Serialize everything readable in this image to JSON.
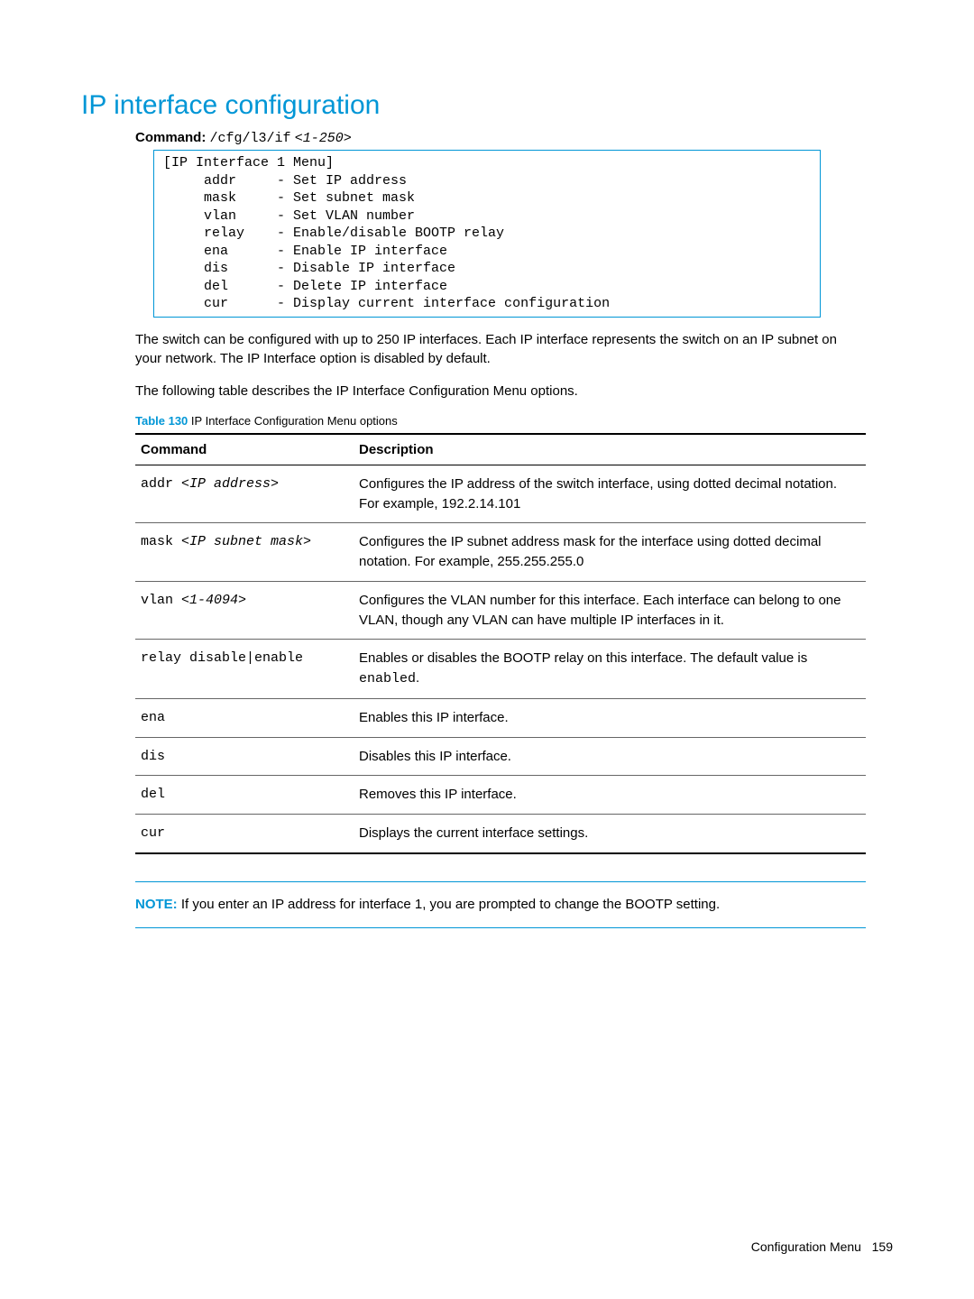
{
  "title": "IP interface configuration",
  "command_line": {
    "label": "Command:",
    "path": "/cfg/l3/if",
    "arg": "<1-250>"
  },
  "terminal_text": "[IP Interface 1 Menu]\n     addr     - Set IP address\n     mask     - Set subnet mask\n     vlan     - Set VLAN number\n     relay    - Enable/disable BOOTP relay\n     ena      - Enable IP interface\n     dis      - Disable IP interface\n     del      - Delete IP interface\n     cur      - Display current interface configuration",
  "p1": "The switch can be configured with up to 250 IP interfaces. Each IP interface represents the switch on an IP subnet on your network. The IP Interface option is disabled by default.",
  "p2": "The following table describes the IP Interface Configuration Menu options.",
  "caption": {
    "num": "Table 130",
    "text": "IP Interface Configuration Menu options"
  },
  "table": {
    "headers": {
      "c1": "Command",
      "c2": "Description"
    },
    "rows": [
      {
        "cmd_plain": "addr ",
        "cmd_ital": "<IP address>",
        "desc": "Configures the IP address of the switch interface, using dotted decimal notation. For example, 192.2.14.101"
      },
      {
        "cmd_plain": "mask ",
        "cmd_ital": "<IP subnet mask>",
        "desc": "Configures the IP subnet address mask for the interface using dotted decimal notation. For example, 255.255.255.0"
      },
      {
        "cmd_plain": "vlan ",
        "cmd_ital": "<1-4094>",
        "desc": "Configures the VLAN number for this interface. Each interface can belong to one VLAN, though any VLAN can have multiple IP interfaces in it."
      },
      {
        "cmd_plain": "relay disable|enable",
        "cmd_ital": "",
        "desc_pre": "Enables or disables the BOOTP relay on this interface. The default value is ",
        "desc_mono": "enabled",
        "desc_post": "."
      },
      {
        "cmd_plain": "ena",
        "cmd_ital": "",
        "desc": "Enables this IP interface."
      },
      {
        "cmd_plain": "dis",
        "cmd_ital": "",
        "desc": "Disables this IP interface."
      },
      {
        "cmd_plain": "del",
        "cmd_ital": "",
        "desc": "Removes this IP interface."
      },
      {
        "cmd_plain": "cur",
        "cmd_ital": "",
        "desc": "Displays the current interface settings."
      }
    ]
  },
  "note": {
    "label": "NOTE:",
    "text": "If you enter an IP address for interface 1, you are prompted to change the BOOTP setting."
  },
  "footer": {
    "section": "Configuration Menu",
    "page": "159"
  }
}
